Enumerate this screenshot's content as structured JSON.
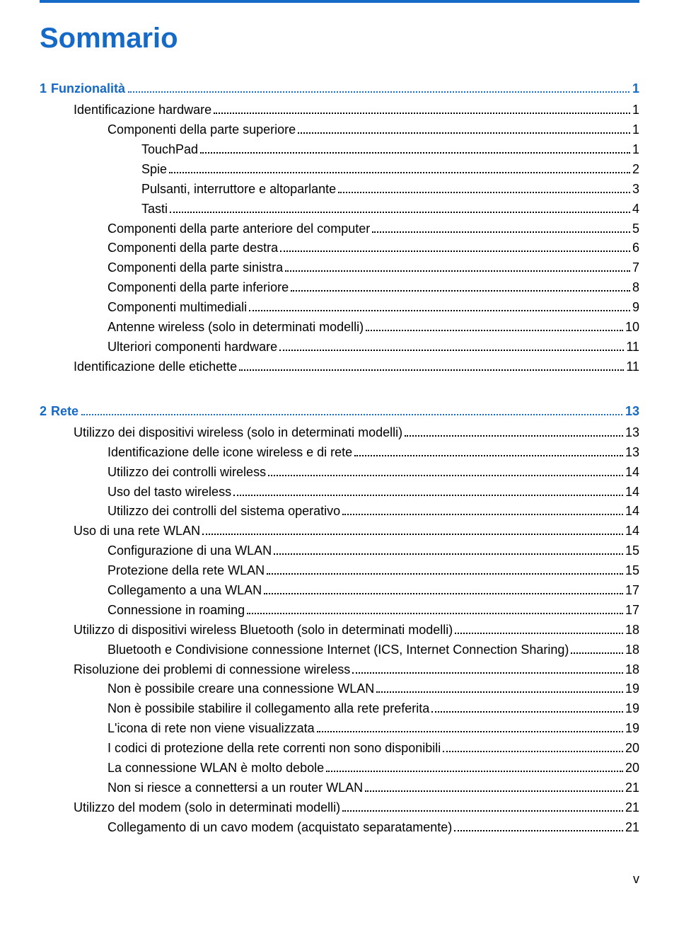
{
  "title": "Sommario",
  "title_color": "#1569c7",
  "rule_color": "#1569c7",
  "page_roman": "v",
  "sections": [
    {
      "num": "1",
      "label": "Funzionalità",
      "page": "1",
      "color": "#1569c7",
      "entries": [
        {
          "indent": 1,
          "label": "Identificazione hardware",
          "page": "1"
        },
        {
          "indent": 2,
          "label": "Componenti della parte superiore",
          "page": "1"
        },
        {
          "indent": 3,
          "label": "TouchPad",
          "page": "1"
        },
        {
          "indent": 3,
          "label": "Spie",
          "page": "2"
        },
        {
          "indent": 3,
          "label": "Pulsanti, interruttore e altoparlante",
          "page": "3"
        },
        {
          "indent": 3,
          "label": "Tasti",
          "page": "4"
        },
        {
          "indent": 2,
          "label": "Componenti della parte anteriore del computer",
          "page": "5"
        },
        {
          "indent": 2,
          "label": "Componenti della parte destra",
          "page": "6"
        },
        {
          "indent": 2,
          "label": "Componenti della parte sinistra",
          "page": "7"
        },
        {
          "indent": 2,
          "label": "Componenti della parte inferiore",
          "page": "8"
        },
        {
          "indent": 2,
          "label": "Componenti multimediali",
          "page": "9"
        },
        {
          "indent": 2,
          "label": "Antenne wireless (solo in determinati modelli)",
          "page": "10"
        },
        {
          "indent": 2,
          "label": "Ulteriori componenti hardware",
          "page": "11"
        },
        {
          "indent": 1,
          "label": "Identificazione delle etichette",
          "page": "11"
        }
      ]
    },
    {
      "num": "2",
      "label": "Rete",
      "page": "13",
      "color": "#1569c7",
      "entries": [
        {
          "indent": 1,
          "label": "Utilizzo dei dispositivi wireless (solo in determinati modelli)",
          "page": "13"
        },
        {
          "indent": 2,
          "label": "Identificazione delle icone wireless e di rete",
          "page": "13"
        },
        {
          "indent": 2,
          "label": "Utilizzo dei controlli wireless",
          "page": "14"
        },
        {
          "indent": 2,
          "label": "Uso del tasto wireless",
          "page": "14"
        },
        {
          "indent": 2,
          "label": "Utilizzo dei controlli del sistema operativo",
          "page": "14"
        },
        {
          "indent": 1,
          "label": "Uso di una rete WLAN",
          "page": "14"
        },
        {
          "indent": 2,
          "label": "Configurazione di una WLAN",
          "page": "15"
        },
        {
          "indent": 2,
          "label": "Protezione della rete WLAN",
          "page": "15"
        },
        {
          "indent": 2,
          "label": "Collegamento a una WLAN",
          "page": "17"
        },
        {
          "indent": 2,
          "label": "Connessione in roaming",
          "page": "17"
        },
        {
          "indent": 1,
          "label": "Utilizzo di dispositivi wireless Bluetooth (solo in determinati modelli)",
          "page": "18"
        },
        {
          "indent": 2,
          "label": "Bluetooth e Condivisione connessione Internet (ICS, Internet Connection Sharing)",
          "page": "18"
        },
        {
          "indent": 1,
          "label": "Risoluzione dei problemi di connessione wireless",
          "page": "18"
        },
        {
          "indent": 2,
          "label": "Non è possibile creare una connessione WLAN",
          "page": "19"
        },
        {
          "indent": 2,
          "label": "Non è possibile stabilire il collegamento alla rete preferita",
          "page": "19"
        },
        {
          "indent": 2,
          "label": "L'icona di rete non viene visualizzata",
          "page": "19"
        },
        {
          "indent": 2,
          "label": "I codici di protezione della rete correnti non sono disponibili",
          "page": "20"
        },
        {
          "indent": 2,
          "label": "La connessione WLAN è molto debole",
          "page": "20"
        },
        {
          "indent": 2,
          "label": "Non si riesce a connettersi a un router WLAN",
          "page": "21"
        },
        {
          "indent": 1,
          "label": "Utilizzo del modem (solo in determinati modelli)",
          "page": "21"
        },
        {
          "indent": 2,
          "label": "Collegamento di un cavo modem (acquistato separatamente)",
          "page": "21"
        }
      ]
    }
  ]
}
